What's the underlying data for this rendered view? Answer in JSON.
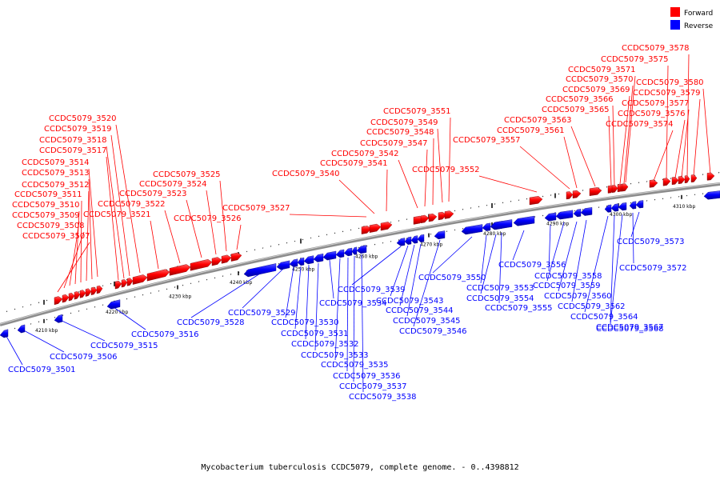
{
  "legend": {
    "forward_label": "Forward",
    "reverse_label": "Reverse",
    "forward_color": "#ff0000",
    "reverse_color": "#0000ff"
  },
  "caption": "Mycobacterium tuberculosis CCDC5079, complete genome. - 0..4398812",
  "axis": {
    "unit": "kbp",
    "tick_labels": [
      "4210 kbp",
      "4220 kbp",
      "4230 kbp",
      "4240 kbp",
      "4250 kbp",
      "4260 kbp",
      "4270 kbp",
      "4280 kbp",
      "4290 kbp",
      "4300 kbp",
      "4310 kbp"
    ]
  },
  "forward_genes": [
    "CCDC5079_3507",
    "CCDC5079_3508",
    "CCDC5079_3509",
    "CCDC5079_3510",
    "CCDC5079_3511",
    "CCDC5079_3512",
    "CCDC5079_3513",
    "CCDC5079_3514",
    "CCDC5079_3517",
    "CCDC5079_3518",
    "CCDC5079_3519",
    "CCDC5079_3520",
    "CCDC5079_3521",
    "CCDC5079_3522",
    "CCDC5079_3523",
    "CCDC5079_3524",
    "CCDC5079_3525",
    "CCDC5079_3526",
    "CCDC5079_3527",
    "CCDC5079_3540",
    "CCDC5079_3541",
    "CCDC5079_3542",
    "CCDC5079_3547",
    "CCDC5079_3548",
    "CCDC5079_3549",
    "CCDC5079_3551",
    "CCDC5079_3552",
    "CCDC5079_3557",
    "CCDC5079_3561",
    "CCDC5079_3563",
    "CCDC5079_3565",
    "CCDC5079_3566",
    "CCDC5079_3569",
    "CCDC5079_3570",
    "CCDC5079_3571",
    "CCDC5079_3574",
    "CCDC5079_3575",
    "CCDC5079_3576",
    "CCDC5079_3577",
    "CCDC5079_3578",
    "CCDC5079_3579",
    "CCDC5079_3580"
  ],
  "reverse_genes": [
    "CCDC5079_3501",
    "CCDC5079_3506",
    "CCDC5079_3515",
    "CCDC5079_3516",
    "CCDC5079_3528",
    "CCDC5079_3529",
    "CCDC5079_3530",
    "CCDC5079_3531",
    "CCDC5079_3532",
    "CCDC5079_3533",
    "CCDC5079_3534",
    "CCDC5079_3535",
    "CCDC5079_3536",
    "CCDC5079_3537",
    "CCDC5079_3538",
    "CCDC5079_3539",
    "CCDC5079_3543",
    "CCDC5079_3544",
    "CCDC5079_3545",
    "CCDC5079_3546",
    "CCDC5079_3550",
    "CCDC5079_3553",
    "CCDC5079_3554",
    "CCDC5079_3555",
    "CCDC5079_3556",
    "CCDC5079_3558",
    "CCDC5079_3559",
    "CCDC5079_3560",
    "CCDC5079_3562",
    "CCDC5079_3564",
    "CCDC5079_3567",
    "CCDC5079_3568",
    "CCDC5079_3572",
    "CCDC5079_3573"
  ]
}
